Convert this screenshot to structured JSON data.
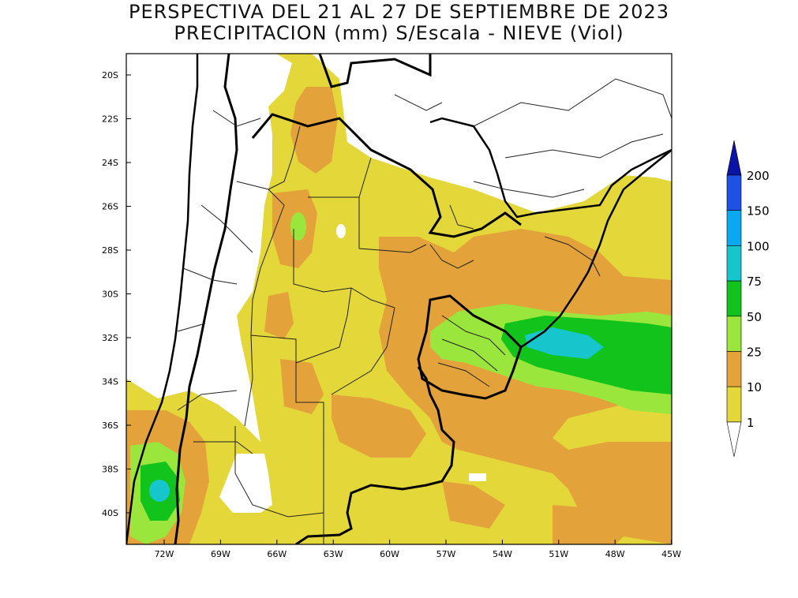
{
  "title": {
    "line1": "PERSPECTIVA DEL 21 AL 27 DE SEPTIEMBRE DE 2023",
    "line2": "PRECIPITACION (mm) S/Escala - NIEVE (Viol)"
  },
  "map": {
    "lat_labels": [
      "20S",
      "22S",
      "24S",
      "26S",
      "28S",
      "30S",
      "32S",
      "34S",
      "36S",
      "38S",
      "40S"
    ],
    "lon_labels": [
      "72W",
      "69W",
      "66W",
      "63W",
      "60W",
      "57W",
      "54W",
      "51W",
      "48W",
      "45W"
    ]
  },
  "legend": {
    "labels": [
      "200",
      "150",
      "100",
      "75",
      "50",
      "25",
      "10",
      "1"
    ],
    "colors": {
      "c200": "#0b12a6",
      "c150": "#1e52e6",
      "c100": "#0aa8f0",
      "c75": "#17c6cc",
      "c50": "#12c31c",
      "c25": "#9ae63c",
      "c10": "#e3a23a",
      "c1": "#e3d73a",
      "c0": "#ffffff"
    }
  }
}
